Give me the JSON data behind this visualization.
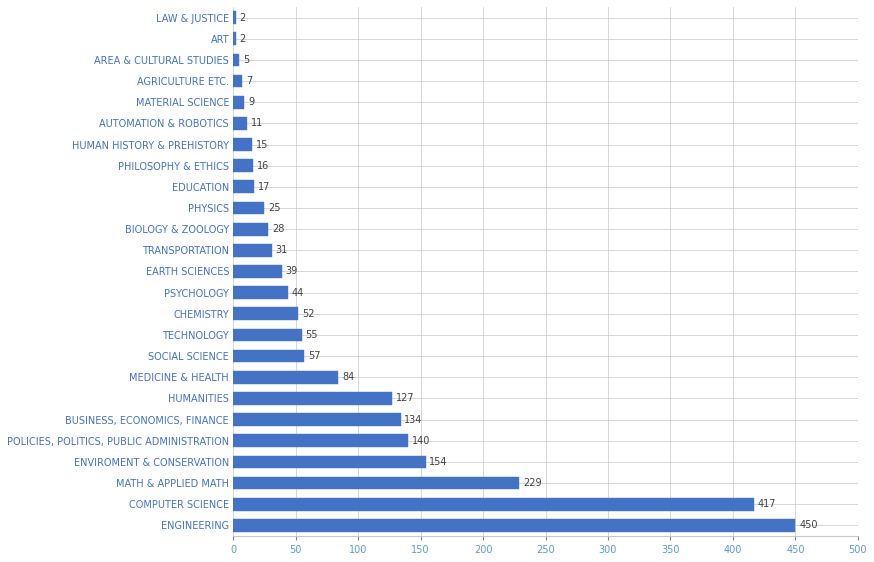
{
  "categories": [
    "ENGINEERING",
    "COMPUTER SCIENCE",
    "MATH & APPLIED MATH",
    "ENVIROMENT & CONSERVATION",
    "POLICIES, POLITICS, PUBLIC ADMINISTRATION",
    "BUSINESS, ECONOMICS, FINANCE",
    "HUMANITIES",
    "MEDICINE & HEALTH",
    "SOCIAL SCIENCE",
    "TECHNOLOGY",
    "CHEMISTRY",
    "PSYCHOLOGY",
    "EARTH SCIENCES",
    "TRANSPORTATION",
    "BIOLOGY & ZOOLOGY",
    "PHYSICS",
    "EDUCATION",
    "PHILOSOPHY & ETHICS",
    "HUMAN HISTORY & PREHISTORY",
    "AUTOMATION & ROBOTICS",
    "MATERIAL SCIENCE",
    "AGRICULTURE ETC.",
    "AREA & CULTURAL STUDIES",
    "ART",
    "LAW & JUSTICE"
  ],
  "values": [
    450,
    417,
    229,
    154,
    140,
    134,
    127,
    84,
    57,
    55,
    52,
    44,
    39,
    31,
    28,
    25,
    17,
    16,
    15,
    11,
    9,
    7,
    5,
    2,
    2
  ],
  "bar_color": "#4472C4",
  "bar_hatch": "///",
  "label_color": "#4472C4",
  "value_color": "#404040",
  "background_color": "#FFFFFF",
  "grid_color": "#C8C8C8",
  "xlim": [
    0,
    500
  ],
  "xticks": [
    0,
    50,
    100,
    150,
    200,
    250,
    300,
    350,
    400,
    450,
    500
  ],
  "tick_label_fontsize": 7.0,
  "value_label_fontsize": 7.0,
  "bar_height": 0.6
}
